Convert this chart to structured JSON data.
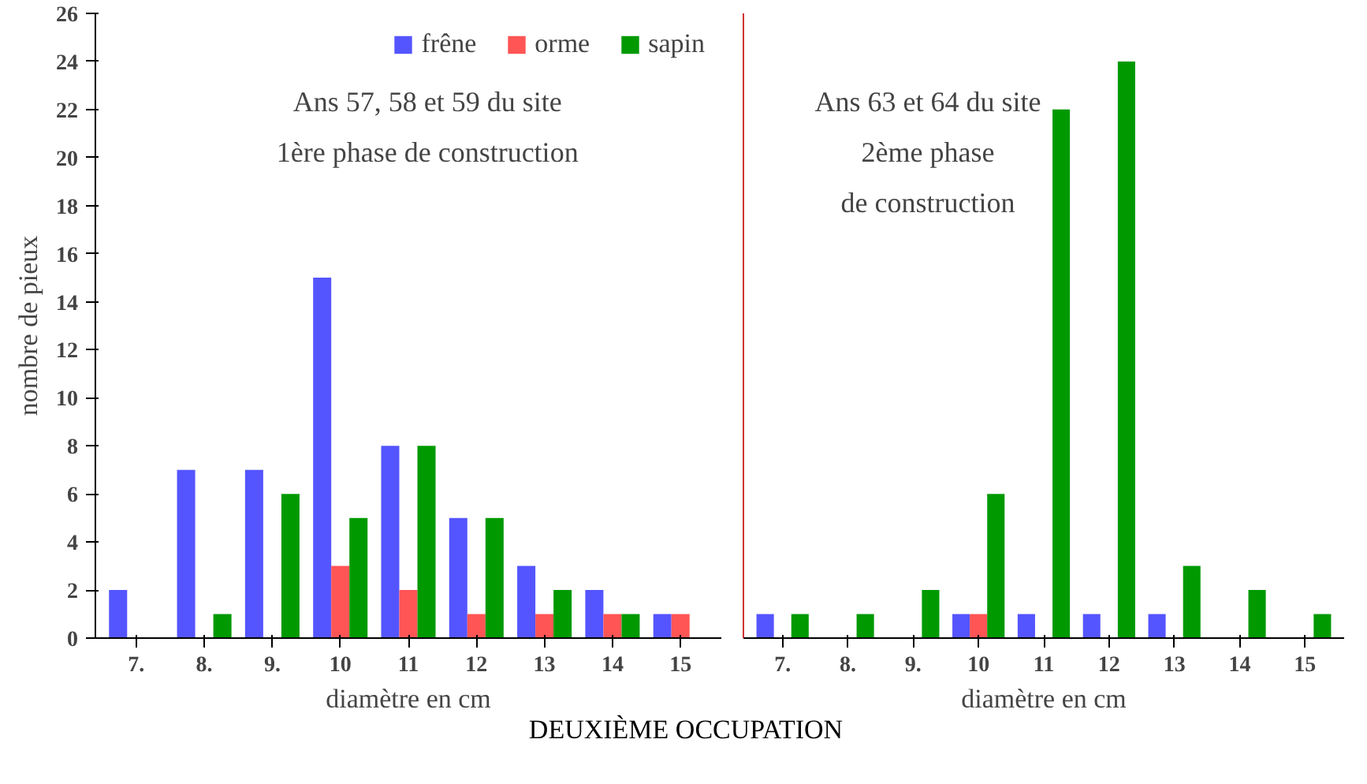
{
  "chart_data": [
    {
      "type": "bar",
      "title": "DEUXIÈME OCCUPATION",
      "xlabel": "diamètre en cm",
      "ylabel": "nombre de pieux",
      "categories": [
        "7.",
        "8.",
        "9.",
        "10",
        "11",
        "12",
        "13",
        "14",
        "15"
      ],
      "series": [
        {
          "name": "frêne",
          "color": "#5555ff",
          "values": [
            2,
            7,
            7,
            15,
            8,
            5,
            3,
            2,
            1
          ]
        },
        {
          "name": "orme",
          "color": "#ff5555",
          "values": [
            0,
            0,
            0,
            3,
            2,
            1,
            1,
            1,
            1
          ]
        },
        {
          "name": "sapin",
          "color": "#009900",
          "values": [
            0,
            1,
            6,
            5,
            8,
            5,
            2,
            1,
            0
          ]
        }
      ],
      "ylim": [
        0,
        26
      ],
      "yticks": [
        0,
        2,
        4,
        6,
        8,
        10,
        12,
        14,
        16,
        18,
        20,
        22,
        24,
        26
      ],
      "legend": "top right",
      "grid": false,
      "annotations": [
        "Ans 57, 58 et 59 du site",
        "1ère phase de construction"
      ]
    },
    {
      "type": "bar",
      "xlabel": "diamètre en cm",
      "categories": [
        "7.",
        "8.",
        "9.",
        "10",
        "11",
        "12",
        "13",
        "14",
        "15"
      ],
      "series": [
        {
          "color": "#5555ff",
          "values": [
            1,
            0,
            0,
            1,
            1,
            1,
            1,
            0,
            0
          ]
        },
        {
          "color": "#ff5555",
          "values": [
            0,
            0,
            0,
            1,
            0,
            0,
            0,
            0,
            0
          ]
        },
        {
          "color": "#009900",
          "values": [
            1,
            1,
            2,
            6,
            22,
            24,
            3,
            2,
            1
          ]
        }
      ],
      "ylim": [
        0,
        26
      ],
      "yticks": [
        0,
        2,
        4,
        6,
        8,
        10,
        12,
        14,
        16,
        18,
        20,
        22,
        24,
        26
      ],
      "tick_labels": "x",
      "grid": false,
      "annotations": [
        "Ans 63 et 64 du site",
        "2ème phase",
        "de construction"
      ]
    }
  ]
}
